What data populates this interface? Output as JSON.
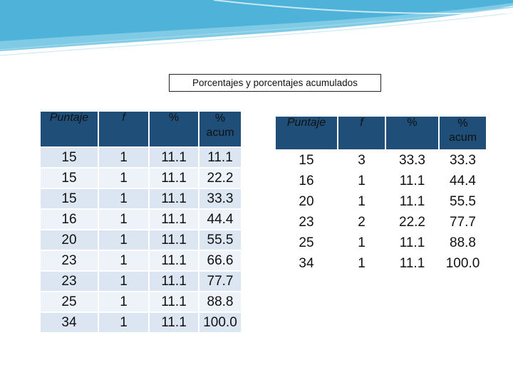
{
  "title": "Porcentajes y porcentajes acumulados",
  "left_table": {
    "headers": [
      "Puntaje",
      "f",
      "%",
      "%",
      "acum"
    ],
    "rows": [
      [
        "15",
        "1",
        "11.1",
        "11.1"
      ],
      [
        "15",
        "1",
        "11.1",
        "22.2"
      ],
      [
        "15",
        "1",
        "11.1",
        "33.3"
      ],
      [
        "16",
        "1",
        "11.1",
        "44.4"
      ],
      [
        "20",
        "1",
        "11.1",
        "55.5"
      ],
      [
        "23",
        "1",
        "11.1",
        "66.6"
      ],
      [
        "23",
        "1",
        "11.1",
        "77.7"
      ],
      [
        "25",
        "1",
        "11.1",
        "88.8"
      ],
      [
        "34",
        "1",
        "11.1",
        "100.0"
      ]
    ]
  },
  "right_table": {
    "headers": [
      "Puntaje",
      "f",
      "%",
      "%",
      "acum"
    ],
    "rows": [
      [
        "15",
        "3",
        "33.3",
        "33.3"
      ],
      [
        "16",
        "1",
        "11.1",
        "44.4"
      ],
      [
        "20",
        "1",
        "11.1",
        "55.5"
      ],
      [
        "23",
        "2",
        "22.2",
        "77.7"
      ],
      [
        "25",
        "1",
        "11.1",
        "88.8"
      ],
      [
        "34",
        "1",
        "11.1",
        "100.0"
      ]
    ]
  },
  "colors": {
    "header_bg": "#1f4e79",
    "row_dark": "#dce6f2",
    "row_light": "#eef3f9",
    "wave": "#4fb3d9"
  }
}
